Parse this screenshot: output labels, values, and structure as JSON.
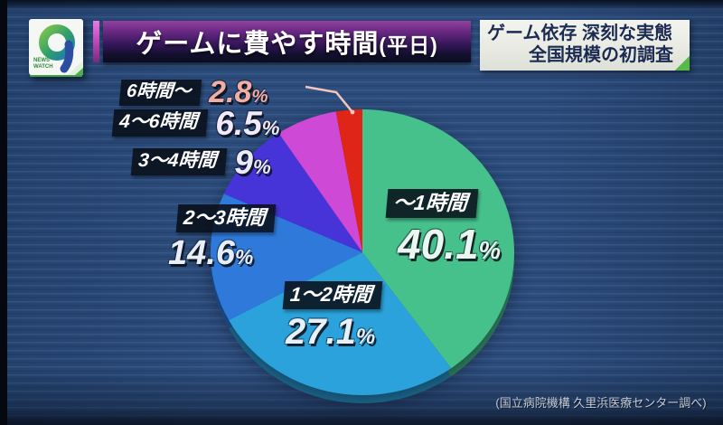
{
  "logo": {
    "number": "9",
    "name_line1": "NEWS",
    "name_line2": "WATCH"
  },
  "header": {
    "title": "ゲームに費やす時間",
    "title_suffix": "(平日)"
  },
  "badge": {
    "line1": "ゲーム依存 深刻な実態",
    "line2": "全国規模の初調査"
  },
  "source_credit": "(国立病院機構 久里浜医療センター調べ)",
  "colors": {
    "background": "#2C4C7C",
    "title_bar_purple": "#93419F",
    "title_accent_pink": "#D75BC8",
    "badge_bg": "#EDEEE8",
    "badge_text": "#1C2B52",
    "badge_corner_green": "#58B849",
    "label_chip_bg": "#0A1019"
  },
  "chart_data": {
    "type": "pie",
    "title": "ゲームに費やす時間(平日)",
    "unit": "%",
    "start_angle": "12-oclock",
    "direction": "clockwise",
    "slices": [
      {
        "label": "〜1時間",
        "value": 40.1,
        "num": "40.1",
        "color": "#46C18C",
        "num_color": "#EAF7F1"
      },
      {
        "label": "1〜2時間",
        "value": 27.1,
        "num": "27.1",
        "color": "#2BA2DB",
        "num_color": "#E7F1FB"
      },
      {
        "label": "2〜3時間",
        "value": 14.6,
        "num": "14.6",
        "color": "#2E79DA",
        "num_color": "#E7EEF9"
      },
      {
        "label": "3〜4時間",
        "value": 9,
        "num": "9",
        "color": "#4634D8",
        "num_color": "#EAEAFA"
      },
      {
        "label": "4〜6時間",
        "value": 6.5,
        "num": "6.5",
        "color": "#CE4AD6",
        "num_color": "#F2E9FA"
      },
      {
        "label": "6時間〜",
        "value": 2.8,
        "num": "2.8",
        "color": "#DF2517",
        "num_color": "#F2AEA4"
      }
    ]
  }
}
